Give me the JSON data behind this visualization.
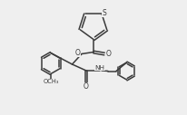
{
  "bg_color": "#efefef",
  "line_color": "#3a3a3a",
  "line_width": 1.1,
  "figsize": [
    2.06,
    1.27
  ],
  "dpi": 100,
  "xlim": [
    0.0,
    2.06
  ],
  "ylim": [
    0.0,
    1.27
  ]
}
